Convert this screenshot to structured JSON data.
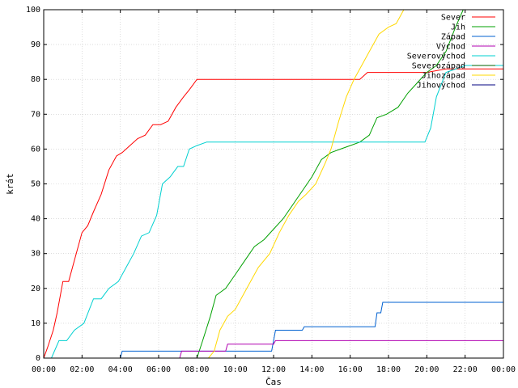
{
  "chart_data": {
    "type": "line",
    "title": "",
    "xlabel": "Čas",
    "ylabel": "krát",
    "xlim": [
      0,
      24
    ],
    "ylim": [
      0,
      100
    ],
    "x_ticks": [
      "00:00",
      "02:00",
      "04:00",
      "06:00",
      "08:00",
      "10:00",
      "12:00",
      "14:00",
      "16:00",
      "18:00",
      "20:00",
      "22:00",
      "00:00"
    ],
    "y_ticks": [
      0,
      10,
      20,
      30,
      40,
      50,
      60,
      70,
      80,
      90,
      100
    ],
    "grid": true,
    "legend_position": "top-right",
    "series": [
      {
        "name": "Sever",
        "color": "#ff0000",
        "x": [
          0.0,
          0.2,
          0.5,
          0.7,
          1.0,
          1.3,
          1.7,
          2.0,
          2.3,
          2.6,
          3.0,
          3.4,
          3.8,
          4.1,
          4.5,
          4.9,
          5.3,
          5.7,
          6.1,
          6.5,
          6.9,
          7.3,
          7.6,
          8.0,
          9.5,
          12.0,
          15.0,
          16.5,
          16.9,
          18.5,
          20.0,
          21.0,
          22.0,
          23.0,
          24.0
        ],
        "y": [
          0,
          3,
          8,
          13,
          22,
          22,
          30,
          36,
          38,
          42,
          47,
          54,
          58,
          59,
          61,
          63,
          64,
          67,
          67,
          68,
          72,
          75,
          77,
          80,
          80,
          80,
          80,
          80,
          82,
          82,
          82,
          83,
          83,
          83,
          83
        ]
      },
      {
        "name": "Jih",
        "color": "#00a000",
        "x": [
          0.0,
          8.0,
          8.3,
          8.7,
          9.0,
          9.5,
          10.0,
          10.5,
          11.0,
          11.5,
          12.0,
          12.5,
          13.0,
          13.5,
          14.0,
          14.5,
          15.0,
          15.5,
          16.0,
          16.5,
          17.0,
          17.4,
          17.9,
          18.5,
          19.0,
          19.5,
          20.0,
          20.5,
          21.0,
          21.5,
          21.9,
          24.0
        ],
        "y": [
          0,
          0,
          5,
          12,
          18,
          20,
          24,
          28,
          32,
          34,
          37,
          40,
          44,
          48,
          52,
          57,
          59,
          60,
          61,
          62,
          64,
          69,
          70,
          72,
          76,
          79,
          82,
          84,
          88,
          95,
          100,
          100
        ]
      },
      {
        "name": "Západ",
        "color": "#0060d0",
        "x": [
          0.0,
          4.0,
          4.1,
          8.0,
          10.5,
          11.9,
          12.1,
          13.5,
          13.6,
          17.3,
          17.4,
          17.6,
          17.7,
          19.0,
          24.0
        ],
        "y": [
          0,
          0,
          2,
          2,
          2,
          2,
          8,
          8,
          9,
          9,
          13,
          13,
          16,
          16,
          16
        ]
      },
      {
        "name": "Východ",
        "color": "#b000b0",
        "x": [
          0.0,
          7.1,
          7.2,
          9.5,
          9.6,
          12.0,
          12.1,
          24.0
        ],
        "y": [
          0,
          0,
          2,
          2,
          4,
          4,
          5,
          5
        ]
      },
      {
        "name": "Severovýchod",
        "color": "#00d0d0",
        "x": [
          0.0,
          0.4,
          0.8,
          1.2,
          1.6,
          2.1,
          2.6,
          3.0,
          3.4,
          3.9,
          4.3,
          4.7,
          5.1,
          5.5,
          5.9,
          6.2,
          6.6,
          7.0,
          7.3,
          7.6,
          8.0,
          8.5,
          9.0,
          12.0,
          16.0,
          19.9,
          20.2,
          20.5,
          21.0,
          22.0,
          23.0,
          24.0
        ],
        "y": [
          0,
          0,
          5,
          5,
          8,
          10,
          17,
          17,
          20,
          22,
          26,
          30,
          35,
          36,
          41,
          50,
          52,
          55,
          55,
          60,
          61,
          62,
          62,
          62,
          62,
          62,
          66,
          75,
          82,
          84,
          84,
          84
        ]
      },
      {
        "name": "Severozápad",
        "color": "#006000",
        "x": [],
        "y": []
      },
      {
        "name": "Jihozápad",
        "color": "#ffd800",
        "x": [
          0.0,
          8.6,
          8.9,
          9.2,
          9.6,
          10.0,
          10.6,
          11.2,
          11.8,
          12.3,
          12.8,
          13.3,
          13.7,
          14.2,
          14.7,
          15.0,
          15.4,
          15.8,
          16.2,
          16.7,
          17.0,
          17.5,
          18.0,
          18.4,
          18.8,
          19.0,
          24.0
        ],
        "y": [
          0,
          0,
          2,
          8,
          12,
          14,
          20,
          26,
          30,
          36,
          41,
          45,
          47,
          50,
          56,
          60,
          68,
          75,
          80,
          85,
          88,
          93,
          95,
          96,
          100,
          100,
          100
        ]
      },
      {
        "name": "Jihovýchod",
        "color": "#000080",
        "x": [],
        "y": []
      }
    ]
  }
}
